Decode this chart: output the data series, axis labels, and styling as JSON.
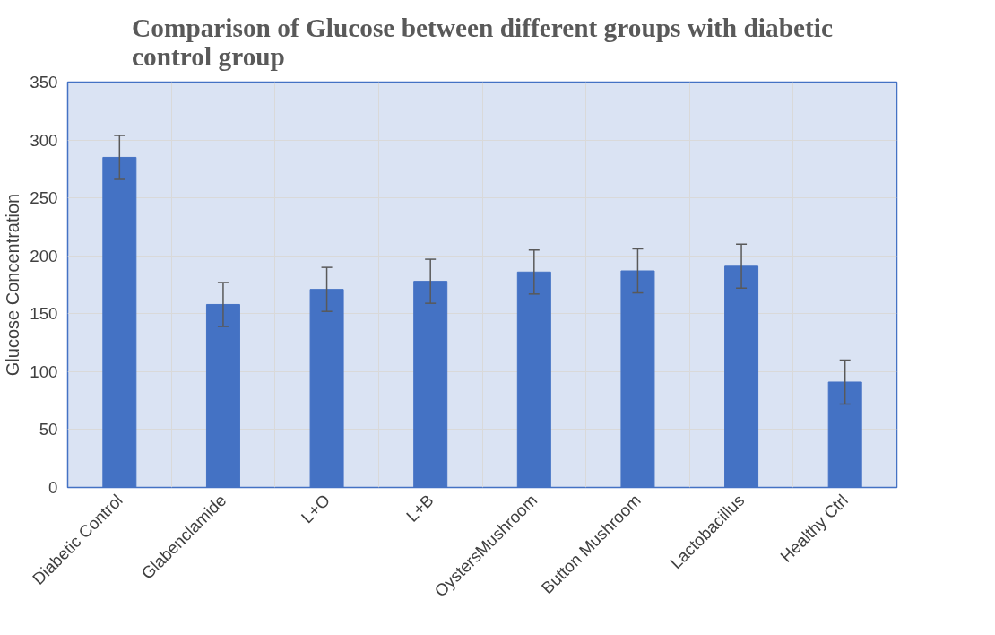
{
  "chart_data": {
    "type": "bar",
    "title": "Comparison of Glucose between different groups with diabetic control group",
    "ylabel": "Glucose Concentration",
    "categories": [
      "Diabetic Control",
      "Glabenclamide",
      "L+O",
      "L+B",
      "OystersMushroom",
      "Button Mushroom",
      "Lactobacillus",
      "Healthy Ctrl"
    ],
    "values": [
      285,
      158,
      171,
      178,
      186,
      187,
      191,
      91
    ],
    "errors": [
      19,
      19,
      19,
      19,
      19,
      19,
      19,
      19
    ],
    "color": "#4472c4",
    "ylim": [
      0,
      350
    ],
    "yticks": [
      0,
      50,
      100,
      150,
      200,
      250,
      300,
      350
    ],
    "grid": true
  }
}
